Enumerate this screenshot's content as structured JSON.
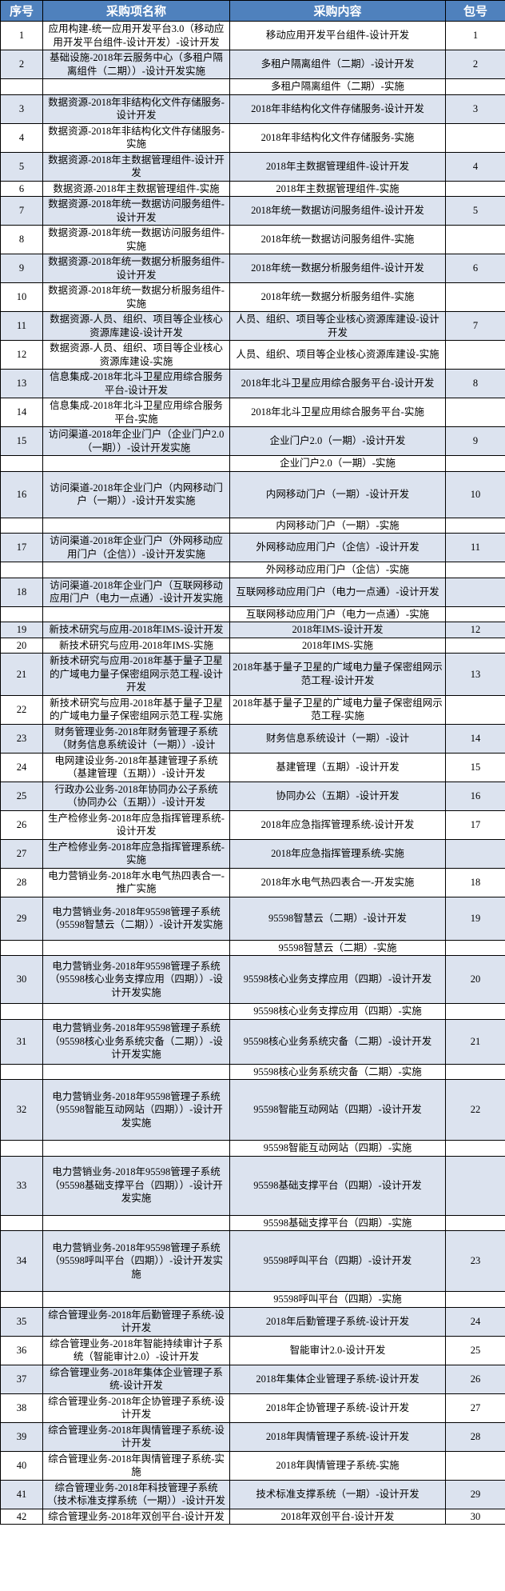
{
  "colors": {
    "header_bg": "#4F81BD",
    "header_text": "#FFFFFF",
    "band_row_bg": "#DCE3EF",
    "plain_row_bg": "#FFFFFF",
    "border": "#000000"
  },
  "table": {
    "columns": [
      "序号",
      "采购项名称",
      "采购内容",
      "包号"
    ],
    "rows": [
      {
        "no": "1",
        "name": "应用构建-统一应用开发平台3.0（移动应用开发平台组件-设计开发）-设计开发",
        "content": "移动应用开发平台组件-设计开发",
        "pkg": "1"
      },
      {
        "no": "2",
        "name": "基础设施-2018年云服务中心（多租户隔离组件（二期））-设计开发实施",
        "content": "多租户隔离组件（二期）-设计开发",
        "pkg": "2"
      },
      {
        "no": "",
        "name": "",
        "content": "多租户隔离组件（二期）-实施",
        "pkg": ""
      },
      {
        "no": "3",
        "name": "数据资源-2018年非结构化文件存储服务-设计开发",
        "content": "2018年非结构化文件存储服务-设计开发",
        "pkg": "3"
      },
      {
        "no": "4",
        "name": "数据资源-2018年非结构化文件存储服务-实施",
        "content": "2018年非结构化文件存储服务-实施",
        "pkg": ""
      },
      {
        "no": "5",
        "name": "数据资源-2018年主数据管理组件-设计开发",
        "content": "2018年主数据管理组件-设计开发",
        "pkg": "4"
      },
      {
        "no": "6",
        "name": "数据资源-2018年主数据管理组件-实施",
        "content": "2018年主数据管理组件-实施",
        "pkg": ""
      },
      {
        "no": "7",
        "name": "数据资源-2018年统一数据访问服务组件-设计开发",
        "content": "2018年统一数据访问服务组件-设计开发",
        "pkg": "5"
      },
      {
        "no": "8",
        "name": "数据资源-2018年统一数据访问服务组件-实施",
        "content": "2018年统一数据访问服务组件-实施",
        "pkg": ""
      },
      {
        "no": "9",
        "name": "数据资源-2018年统一数据分析服务组件-设计开发",
        "content": "2018年统一数据分析服务组件-设计开发",
        "pkg": "6"
      },
      {
        "no": "10",
        "name": "数据资源-2018年统一数据分析服务组件-实施",
        "content": "2018年统一数据分析服务组件-实施",
        "pkg": ""
      },
      {
        "no": "11",
        "name": "数据资源-人员、组织、项目等企业核心资源库建设-设计开发",
        "content": "人员、组织、项目等企业核心资源库建设-设计开发",
        "pkg": "7"
      },
      {
        "no": "12",
        "name": "数据资源-人员、组织、项目等企业核心资源库建设-实施",
        "content": "人员、组织、项目等企业核心资源库建设-实施",
        "pkg": ""
      },
      {
        "no": "13",
        "name": "信息集成-2018年北斗卫星应用综合服务平台-设计开发",
        "content": "2018年北斗卫星应用综合服务平台-设计开发",
        "pkg": "8"
      },
      {
        "no": "14",
        "name": "信息集成-2018年北斗卫星应用综合服务平台-实施",
        "content": "2018年北斗卫星应用综合服务平台-实施",
        "pkg": ""
      },
      {
        "no": "15",
        "name": "访问渠道-2018年企业门户（企业门户2.0（一期））-设计开发实施",
        "content": "企业门户2.0（一期）-设计开发",
        "pkg": "9"
      },
      {
        "no": "",
        "name": "",
        "content": "企业门户2.0（一期）-实施",
        "pkg": ""
      },
      {
        "no": "16",
        "name": "访问渠道-2018年企业门户（内网移动门户（一期））-设计开发实施",
        "content": "内网移动门户（一期）-设计开发",
        "pkg": "10"
      },
      {
        "no": "",
        "name": "",
        "content": "内网移动门户（一期）-实施",
        "pkg": ""
      },
      {
        "no": "17",
        "name": "访问渠道-2018年企业门户（外网移动应用门户（企信））-设计开发实施",
        "content": "外网移动应用门户（企信）-设计开发",
        "pkg": "11"
      },
      {
        "no": "",
        "name": "",
        "content": "外网移动应用门户（企信）-实施",
        "pkg": ""
      },
      {
        "no": "18",
        "name": "访问渠道-2018年企业门户（互联网移动应用门户（电力一点通）-设计开发实施",
        "content": "互联网移动应用门户（电力一点通）-设计开发",
        "pkg": ""
      },
      {
        "no": "",
        "name": "",
        "content": "互联网移动应用门户（电力一点通）-实施",
        "pkg": ""
      },
      {
        "no": "19",
        "name": "新技术研究与应用-2018年IMS-设计开发",
        "content": "2018年IMS-设计开发",
        "pkg": "12"
      },
      {
        "no": "20",
        "name": "新技术研究与应用-2018年IMS-实施",
        "content": "2018年IMS-实施",
        "pkg": ""
      },
      {
        "no": "21",
        "name": "新技术研究与应用-2018年基于量子卫星的广域电力量子保密组网示范工程-设计开发",
        "content": "2018年基于量子卫星的广域电力量子保密组网示范工程-设计开发",
        "pkg": "13"
      },
      {
        "no": "22",
        "name": "新技术研究与应用-2018年基于量子卫星的广域电力量子保密组网示范工程-实施",
        "content": "2018年基于量子卫星的广域电力量子保密组网示范工程-实施",
        "pkg": ""
      },
      {
        "no": "23",
        "name": "财务管理业务-2018年财务管理子系统（财务信息系统设计（一期））-设计",
        "content": "财务信息系统设计（一期）-设计",
        "pkg": "14"
      },
      {
        "no": "24",
        "name": "电网建设业务-2018年基建管理子系统（基建管理（五期））-设计开发",
        "content": "基建管理（五期）-设计开发",
        "pkg": "15"
      },
      {
        "no": "25",
        "name": "行政办公业务-2018年协同办公子系统（协同办公（五期））-设计开发",
        "content": "协同办公（五期）-设计开发",
        "pkg": "16"
      },
      {
        "no": "26",
        "name": "生产检修业务-2018年应急指挥管理系统-设计开发",
        "content": "2018年应急指挥管理系统-设计开发",
        "pkg": "17"
      },
      {
        "no": "27",
        "name": "生产检修业务-2018年应急指挥管理系统-实施",
        "content": "2018年应急指挥管理系统-实施",
        "pkg": ""
      },
      {
        "no": "28",
        "name": "电力营销业务-2018年水电气热四表合一-推广实施",
        "content": "2018年水电气热四表合一-开发实施",
        "pkg": "18"
      },
      {
        "no": "29",
        "name": "电力营销业务-2018年95598管理子系统（95598智慧云（二期））-设计开发实施",
        "content": "95598智慧云（二期）-设计开发",
        "pkg": "19"
      },
      {
        "no": "",
        "name": "",
        "content": "95598智慧云（二期）-实施",
        "pkg": ""
      },
      {
        "no": "30",
        "name": "电力营销业务-2018年95598管理子系统（95598核心业务支撑应用（四期））-设计开发实施",
        "content": "95598核心业务支撑应用（四期）-设计开发",
        "pkg": "20"
      },
      {
        "no": "",
        "name": "",
        "content": "95598核心业务支撑应用（四期）-实施",
        "pkg": ""
      },
      {
        "no": "31",
        "name": "电力营销业务-2018年95598管理子系统（95598核心业务系统灾备（二期））-设计开发实施",
        "content": "95598核心业务系统灾备（二期）-设计开发",
        "pkg": "21"
      },
      {
        "no": "",
        "name": "",
        "content": "95598核心业务系统灾备（二期）-实施",
        "pkg": ""
      },
      {
        "no": "32",
        "name": "电力营销业务-2018年95598管理子系统（95598智能互动网站（四期））-设计开发实施",
        "content": "95598智能互动网站（四期）-设计开发",
        "pkg": "22"
      },
      {
        "no": "",
        "name": "",
        "content": "95598智能互动网站（四期）-实施",
        "pkg": ""
      },
      {
        "no": "33",
        "name": "电力营销业务-2018年95598管理子系统（95598基础支撑平台（四期））-设计开发实施",
        "content": "95598基础支撑平台（四期）-设计开发",
        "pkg": ""
      },
      {
        "no": "",
        "name": "",
        "content": "95598基础支撑平台（四期）-实施",
        "pkg": ""
      },
      {
        "no": "34",
        "name": "电力营销业务-2018年95598管理子系统（95598呼叫平台（四期））-设计开发实施",
        "content": "95598呼叫平台（四期）-设计开发",
        "pkg": "23"
      },
      {
        "no": "",
        "name": "",
        "content": "95598呼叫平台（四期）-实施",
        "pkg": ""
      },
      {
        "no": "35",
        "name": "综合管理业务-2018年后勤管理子系统-设计开发",
        "content": "2018年后勤管理子系统-设计开发",
        "pkg": "24"
      },
      {
        "no": "36",
        "name": "综合管理业务-2018年智能持续审计子系统（智能审计2.0）-设计开发",
        "content": "智能审计2.0-设计开发",
        "pkg": "25"
      },
      {
        "no": "37",
        "name": "综合管理业务-2018年集体企业管理子系统-设计开发",
        "content": "2018年集体企业管理子系统-设计开发",
        "pkg": "26"
      },
      {
        "no": "38",
        "name": "综合管理业务-2018年企协管理子系统-设计开发",
        "content": "2018年企协管理子系统-设计开发",
        "pkg": "27"
      },
      {
        "no": "39",
        "name": "综合管理业务-2018年舆情管理子系统-设计开发",
        "content": "2018年舆情管理子系统-设计开发",
        "pkg": "28"
      },
      {
        "no": "40",
        "name": "综合管理业务-2018年舆情管理子系统-实施",
        "content": "2018年舆情管理子系统-实施",
        "pkg": ""
      },
      {
        "no": "41",
        "name": "综合管理业务-2018年科技管理子系统（技术标准支撑系统（一期））-设计开发",
        "content": "技术标准支撑系统（一期）-设计开发",
        "pkg": "29"
      },
      {
        "no": "42",
        "name": "综合管理业务-2018年双创平台-设计开发",
        "content": "2018年双创平台-设计开发",
        "pkg": "30"
      }
    ]
  }
}
